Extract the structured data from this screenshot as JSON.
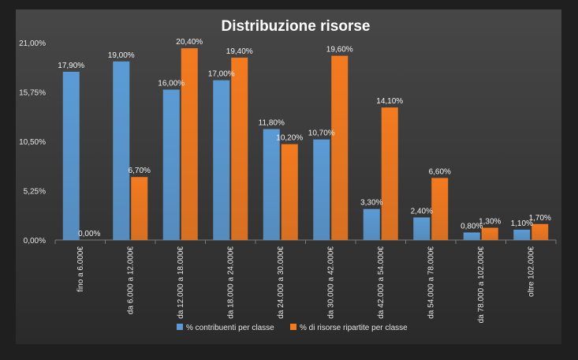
{
  "chart_data": {
    "type": "bar",
    "title": "Distribuzione risorse",
    "categories": [
      "fino a 6.000€",
      "da 6.000 a 12.000€",
      "da 12.000 a 18.000€",
      "da 18.000 a 24.000€",
      "da 24.000 a 30.000€",
      "da 30.000 a 42.000€",
      "da 42.000 a 54.000€",
      "da 54.000 a 78.000€",
      "da 78.000 a 102.000€",
      "oltre 102.000€"
    ],
    "series": [
      {
        "name": "% contribuenti per classe",
        "values": [
          17.9,
          19.0,
          16.0,
          17.0,
          11.8,
          10.7,
          3.3,
          2.4,
          0.8,
          1.1
        ],
        "labels": [
          "17,90%",
          "19,00%",
          "16,00%",
          "17,00%",
          "11,80%",
          "10,70%",
          "3,30%",
          "2,40%",
          "0,80%",
          "1,10%"
        ],
        "color": "#5b9bd5"
      },
      {
        "name": "% di risorse ripartite per classe",
        "values": [
          0.0,
          6.7,
          20.4,
          19.4,
          10.2,
          19.6,
          14.1,
          6.6,
          1.3,
          1.7
        ],
        "labels": [
          "0,00%",
          "6,70%",
          "20,40%",
          "19,40%",
          "10,20%",
          "19,60%",
          "14,10%",
          "6,60%",
          "1,30%",
          "1,70%"
        ],
        "color": "#f47a1f"
      }
    ],
    "ylim": [
      0,
      21
    ],
    "yticks": [
      0,
      5.25,
      10.5,
      15.75,
      21
    ],
    "ytick_labels": [
      "0,00%",
      "5,25%",
      "10,50%",
      "15,75%",
      "21,00%"
    ],
    "legend_position": "bottom",
    "grid": false
  }
}
